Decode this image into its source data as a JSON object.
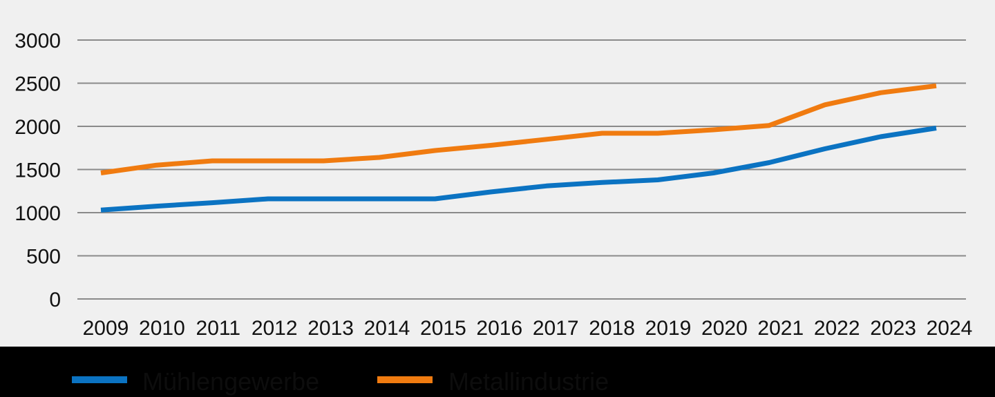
{
  "chart_data": {
    "type": "line",
    "title": "",
    "xlabel": "",
    "ylabel": "",
    "ylim": [
      0,
      3000
    ],
    "yticks": [
      0,
      500,
      1000,
      1500,
      2000,
      2500,
      3000
    ],
    "x": [
      "2009",
      "2010",
      "2011",
      "2012",
      "2013",
      "2014",
      "2015",
      "2016",
      "2017",
      "2018",
      "2019",
      "2020",
      "2021",
      "2022",
      "2023",
      "2024"
    ],
    "grid": true,
    "legend_position": "bottom",
    "series": [
      {
        "name": "Mühlengewerbe",
        "color": "#0b73c2",
        "values": [
          1030,
          1075,
          1115,
          1160,
          1160,
          1160,
          1160,
          1240,
          1310,
          1350,
          1380,
          1460,
          1580,
          1740,
          1880,
          1980
        ]
      },
      {
        "name": "Metallindustrie",
        "color": "#f07b10",
        "values": [
          1460,
          1550,
          1600,
          1600,
          1600,
          1640,
          1720,
          1780,
          1850,
          1920,
          1920,
          1960,
          2010,
          2250,
          2390,
          2470
        ]
      }
    ]
  }
}
